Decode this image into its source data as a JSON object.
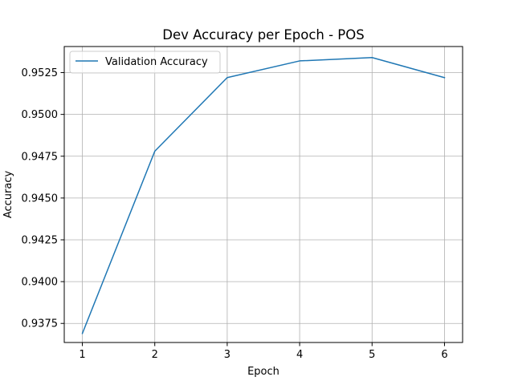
{
  "chart_data": {
    "type": "line",
    "title": "Dev Accuracy per Epoch - POS",
    "xlabel": "Epoch",
    "ylabel": "Accuracy",
    "x": [
      1,
      2,
      3,
      4,
      5,
      6
    ],
    "series": [
      {
        "name": "Validation Accuracy",
        "values": [
          0.9369,
          0.9478,
          0.9522,
          0.9532,
          0.9534,
          0.9522
        ],
        "color": "#1f77b4"
      }
    ],
    "xticks": [
      "1",
      "2",
      "3",
      "4",
      "5",
      "6"
    ],
    "yticks": [
      "0.9375",
      "0.9400",
      "0.9425",
      "0.9450",
      "0.9475",
      "0.9500",
      "0.9525"
    ],
    "xlim": [
      0.75,
      6.25
    ],
    "ylim": [
      0.93636,
      0.95406
    ],
    "grid": true,
    "legend_position": "upper left"
  }
}
